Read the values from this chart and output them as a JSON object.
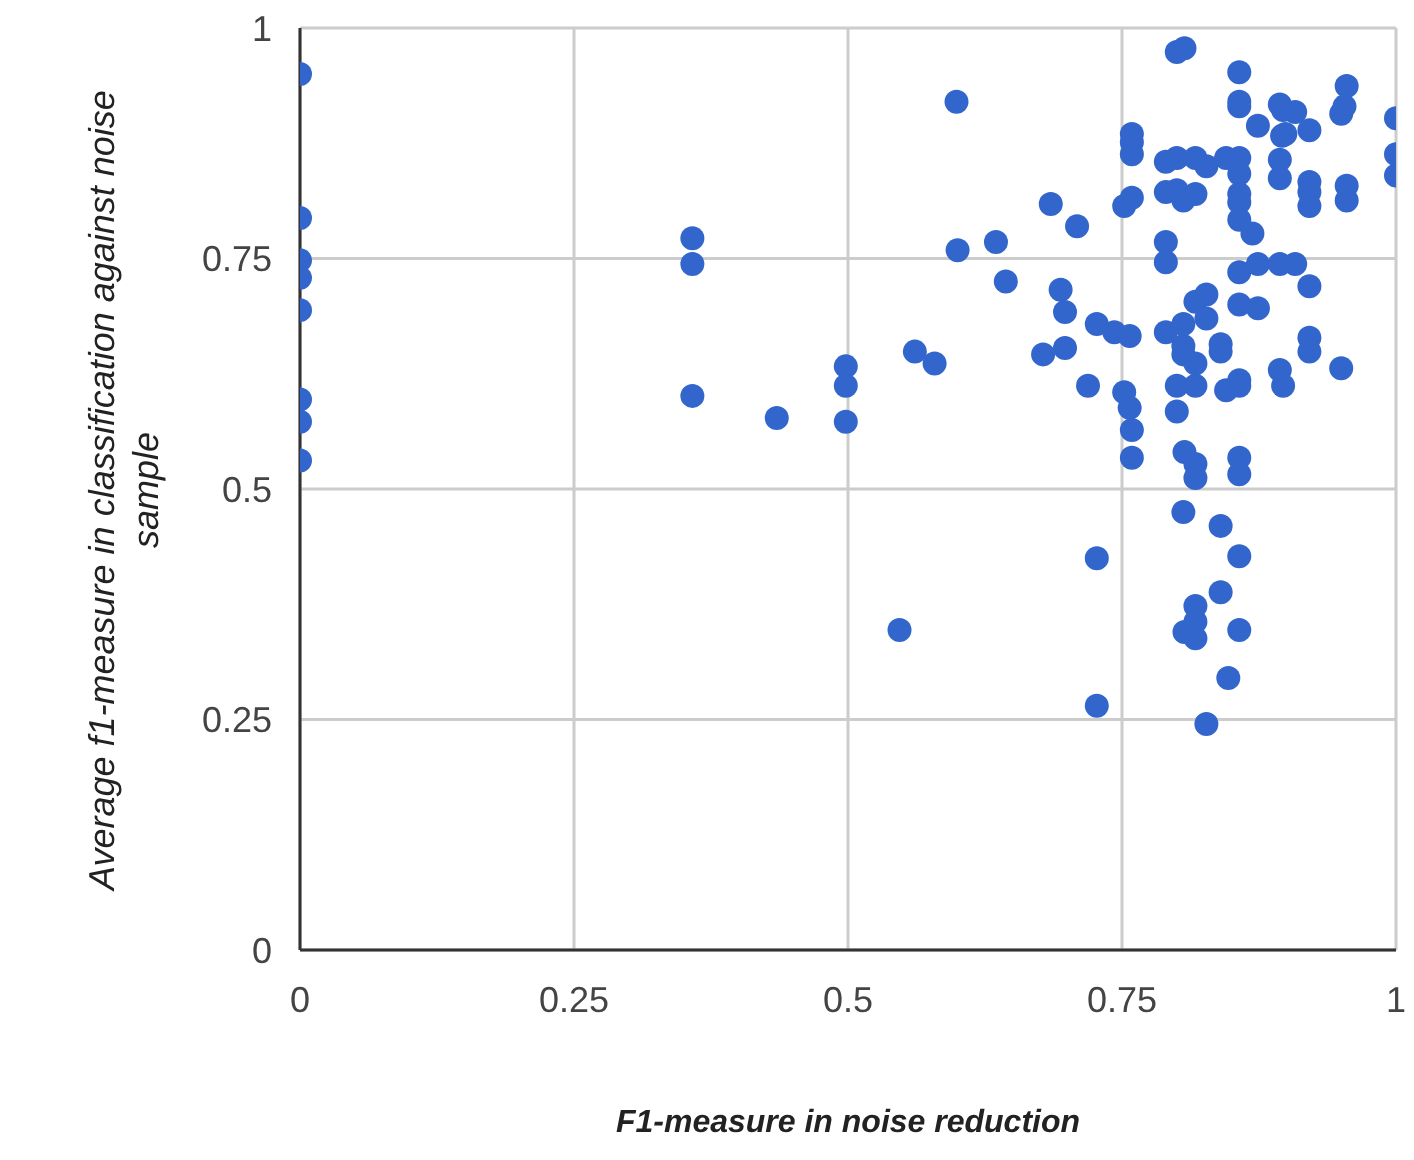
{
  "chart_data": {
    "type": "scatter",
    "xlabel": "F1-measure in noise reduction",
    "ylabel": "Average f1-measure in classification against noise sample",
    "xlim": [
      0,
      1
    ],
    "ylim": [
      0,
      1
    ],
    "xticks": [
      0,
      0.25,
      0.5,
      0.75,
      1
    ],
    "yticks": [
      0,
      0.25,
      0.5,
      0.75,
      1
    ],
    "grid": true,
    "marker": "circle",
    "series": [
      {
        "color": "#3366cc",
        "x": [
          0,
          0,
          0,
          0,
          0,
          0,
          0,
          0,
          0.358,
          0.358,
          0.358,
          0.435,
          0.498,
          0.498,
          0.498,
          0.547,
          0.561,
          0.579,
          0.599,
          0.6,
          0.635,
          0.644,
          0.678,
          0.685,
          0.694,
          0.698,
          0.698,
          0.709,
          0.719,
          0.727,
          0.727,
          0.727,
          0.743,
          0.752,
          0.752,
          0.757,
          0.757,
          0.759,
          0.759,
          0.759,
          0.759,
          0.759,
          0.759,
          0.79,
          0.79,
          0.79,
          0.79,
          0.79,
          0.8,
          0.8,
          0.8,
          0.8,
          0.8,
          0.806,
          0.806,
          0.806,
          0.806,
          0.806,
          0.807,
          0.807,
          0.807,
          0.817,
          0.817,
          0.817,
          0.817,
          0.817,
          0.817,
          0.817,
          0.817,
          0.817,
          0.817,
          0.827,
          0.827,
          0.827,
          0.827,
          0.84,
          0.84,
          0.84,
          0.84,
          0.845,
          0.845,
          0.847,
          0.857,
          0.857,
          0.857,
          0.857,
          0.857,
          0.857,
          0.857,
          0.857,
          0.857,
          0.857,
          0.857,
          0.857,
          0.857,
          0.857,
          0.857,
          0.857,
          0.869,
          0.874,
          0.874,
          0.874,
          0.894,
          0.894,
          0.894,
          0.894,
          0.894,
          0.896,
          0.897,
          0.897,
          0.899,
          0.908,
          0.908,
          0.921,
          0.921,
          0.921,
          0.921,
          0.921,
          0.921,
          0.921,
          0.95,
          0.95,
          0.953,
          0.955,
          0.955,
          0.955,
          1,
          1,
          1
        ],
        "values": [
          0.95,
          0.794,
          0.748,
          0.729,
          0.694,
          0.597,
          0.573,
          0.531,
          0.772,
          0.744,
          0.601,
          0.577,
          0.633,
          0.612,
          0.573,
          0.347,
          0.649,
          0.636,
          0.92,
          0.759,
          0.768,
          0.725,
          0.646,
          0.809,
          0.716,
          0.692,
          0.653,
          0.785,
          0.612,
          0.679,
          0.425,
          0.265,
          0.67,
          0.807,
          0.605,
          0.666,
          0.588,
          0.885,
          0.876,
          0.863,
          0.816,
          0.564,
          0.534,
          0.855,
          0.822,
          0.768,
          0.746,
          0.67,
          0.974,
          0.859,
          0.824,
          0.612,
          0.584,
          0.813,
          0.679,
          0.655,
          0.646,
          0.475,
          0.978,
          0.54,
          0.345,
          0.859,
          0.82,
          0.703,
          0.636,
          0.612,
          0.527,
          0.512,
          0.373,
          0.356,
          0.338,
          0.85,
          0.711,
          0.685,
          0.245,
          0.657,
          0.649,
          0.46,
          0.388,
          0.859,
          0.607,
          0.295,
          0.952,
          0.92,
          0.915,
          0.859,
          0.842,
          0.82,
          0.811,
          0.792,
          0.735,
          0.7,
          0.618,
          0.612,
          0.534,
          0.516,
          0.427,
          0.347,
          0.777,
          0.894,
          0.744,
          0.696,
          0.917,
          0.857,
          0.837,
          0.744,
          0.629,
          0.883,
          0.911,
          0.612,
          0.885,
          0.909,
          0.744,
          0.889,
          0.833,
          0.822,
          0.807,
          0.72,
          0.664,
          0.649,
          0.907,
          0.631,
          0.915,
          0.937,
          0.829,
          0.813,
          0.902,
          0.863,
          0.84
        ]
      }
    ]
  }
}
